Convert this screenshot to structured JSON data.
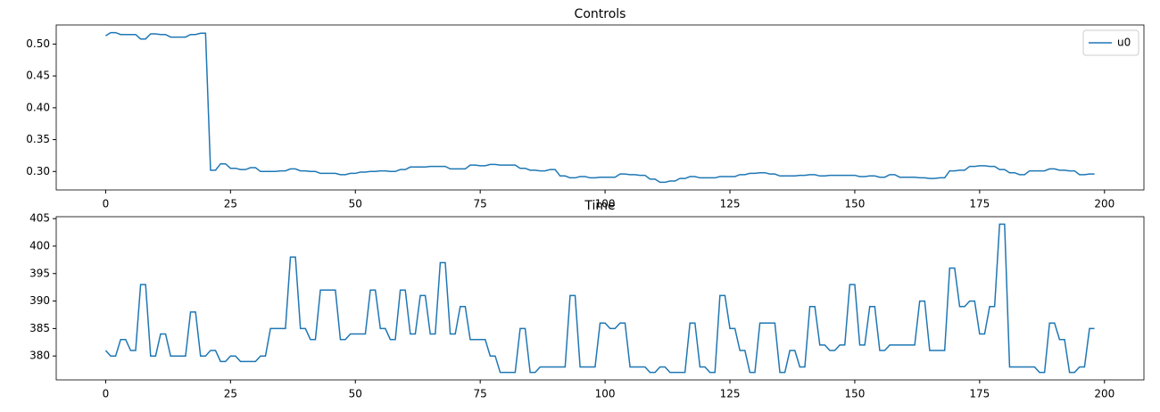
{
  "chart_data": [
    {
      "type": "line",
      "title": "Controls",
      "x": [
        0,
        1,
        2,
        3,
        4,
        5,
        6,
        7,
        8,
        9,
        10,
        11,
        12,
        13,
        14,
        15,
        16,
        17,
        18,
        19,
        20,
        21,
        22,
        23,
        24,
        25,
        26,
        27,
        28,
        29,
        30,
        31,
        32,
        33,
        34,
        35,
        36,
        37,
        38,
        39,
        40,
        41,
        42,
        43,
        44,
        45,
        46,
        47,
        48,
        49,
        50,
        51,
        52,
        53,
        54,
        55,
        56,
        57,
        58,
        59,
        60,
        61,
        62,
        63,
        64,
        65,
        66,
        67,
        68,
        69,
        70,
        71,
        72,
        73,
        74,
        75,
        76,
        77,
        78,
        79,
        80,
        81,
        82,
        83,
        84,
        85,
        86,
        87,
        88,
        89,
        90,
        91,
        92,
        93,
        94,
        95,
        96,
        97,
        98,
        99,
        100,
        101,
        102,
        103,
        104,
        105,
        106,
        107,
        108,
        109,
        110,
        111,
        112,
        113,
        114,
        115,
        116,
        117,
        118,
        119,
        120,
        121,
        122,
        123,
        124,
        125,
        126,
        127,
        128,
        129,
        130,
        131,
        132,
        133,
        134,
        135,
        136,
        137,
        138,
        139,
        140,
        141,
        142,
        143,
        144,
        145,
        146,
        147,
        148,
        149,
        150,
        151,
        152,
        153,
        154,
        155,
        156,
        157,
        158,
        159,
        160,
        161,
        162,
        163,
        164,
        165,
        166,
        167,
        168,
        169,
        170,
        171,
        172,
        173,
        174,
        175,
        176,
        177,
        178,
        179,
        180,
        181,
        182,
        183,
        184,
        185,
        186,
        187,
        188,
        189,
        190,
        191,
        192,
        193,
        194,
        195,
        196,
        197,
        198
      ],
      "series": [
        {
          "name": "u0",
          "color": "#1f77b4",
          "values": [
            0.513,
            0.518,
            0.518,
            0.515,
            0.515,
            0.515,
            0.515,
            0.508,
            0.508,
            0.516,
            0.516,
            0.515,
            0.515,
            0.511,
            0.511,
            0.511,
            0.511,
            0.515,
            0.515,
            0.517,
            0.517,
            0.302,
            0.302,
            0.312,
            0.312,
            0.305,
            0.305,
            0.303,
            0.303,
            0.306,
            0.306,
            0.3,
            0.3,
            0.3,
            0.3,
            0.301,
            0.301,
            0.304,
            0.304,
            0.301,
            0.301,
            0.3,
            0.3,
            0.297,
            0.297,
            0.297,
            0.297,
            0.295,
            0.295,
            0.297,
            0.297,
            0.299,
            0.299,
            0.3,
            0.3,
            0.301,
            0.301,
            0.3,
            0.3,
            0.303,
            0.303,
            0.307,
            0.307,
            0.307,
            0.307,
            0.308,
            0.308,
            0.308,
            0.308,
            0.304,
            0.304,
            0.304,
            0.304,
            0.31,
            0.31,
            0.309,
            0.309,
            0.311,
            0.311,
            0.31,
            0.31,
            0.31,
            0.31,
            0.305,
            0.305,
            0.302,
            0.302,
            0.301,
            0.301,
            0.303,
            0.303,
            0.293,
            0.293,
            0.29,
            0.29,
            0.292,
            0.292,
            0.29,
            0.29,
            0.291,
            0.291,
            0.291,
            0.291,
            0.296,
            0.296,
            0.295,
            0.295,
            0.294,
            0.294,
            0.288,
            0.288,
            0.283,
            0.283,
            0.285,
            0.285,
            0.289,
            0.289,
            0.292,
            0.292,
            0.29,
            0.29,
            0.29,
            0.29,
            0.292,
            0.292,
            0.292,
            0.292,
            0.295,
            0.295,
            0.297,
            0.297,
            0.298,
            0.298,
            0.296,
            0.296,
            0.293,
            0.293,
            0.293,
            0.293,
            0.294,
            0.294,
            0.295,
            0.295,
            0.293,
            0.293,
            0.294,
            0.294,
            0.294,
            0.294,
            0.294,
            0.294,
            0.292,
            0.292,
            0.293,
            0.293,
            0.291,
            0.291,
            0.295,
            0.295,
            0.291,
            0.291,
            0.291,
            0.291,
            0.29,
            0.29,
            0.289,
            0.289,
            0.29,
            0.29,
            0.301,
            0.301,
            0.302,
            0.302,
            0.308,
            0.308,
            0.309,
            0.309,
            0.308,
            0.308,
            0.303,
            0.303,
            0.298,
            0.298,
            0.295,
            0.295,
            0.301,
            0.301,
            0.301,
            0.301,
            0.304,
            0.304,
            0.302,
            0.302,
            0.301,
            0.301,
            0.295,
            0.295,
            0.296,
            0.296
          ]
        }
      ],
      "xlim": [
        -9.9,
        207.9
      ],
      "xticks": [
        0,
        25,
        50,
        75,
        100,
        125,
        150,
        175,
        200
      ],
      "ylim": [
        0.271,
        0.53
      ],
      "yticks": [
        {
          "value": 0.3,
          "label": "0.30"
        },
        {
          "value": 0.35,
          "label": "0.35"
        },
        {
          "value": 0.4,
          "label": "0.40"
        },
        {
          "value": 0.45,
          "label": "0.45"
        },
        {
          "value": 0.5,
          "label": "0.50"
        }
      ],
      "legend": "upper right"
    },
    {
      "type": "line",
      "title": "Time",
      "x": [
        0,
        1,
        2,
        3,
        4,
        5,
        6,
        7,
        8,
        9,
        10,
        11,
        12,
        13,
        14,
        15,
        16,
        17,
        18,
        19,
        20,
        21,
        22,
        23,
        24,
        25,
        26,
        27,
        28,
        29,
        30,
        31,
        32,
        33,
        34,
        35,
        36,
        37,
        38,
        39,
        40,
        41,
        42,
        43,
        44,
        45,
        46,
        47,
        48,
        49,
        50,
        51,
        52,
        53,
        54,
        55,
        56,
        57,
        58,
        59,
        60,
        61,
        62,
        63,
        64,
        65,
        66,
        67,
        68,
        69,
        70,
        71,
        72,
        73,
        74,
        75,
        76,
        77,
        78,
        79,
        80,
        81,
        82,
        83,
        84,
        85,
        86,
        87,
        88,
        89,
        90,
        91,
        92,
        93,
        94,
        95,
        96,
        97,
        98,
        99,
        100,
        101,
        102,
        103,
        104,
        105,
        106,
        107,
        108,
        109,
        110,
        111,
        112,
        113,
        114,
        115,
        116,
        117,
        118,
        119,
        120,
        121,
        122,
        123,
        124,
        125,
        126,
        127,
        128,
        129,
        130,
        131,
        132,
        133,
        134,
        135,
        136,
        137,
        138,
        139,
        140,
        141,
        142,
        143,
        144,
        145,
        146,
        147,
        148,
        149,
        150,
        151,
        152,
        153,
        154,
        155,
        156,
        157,
        158,
        159,
        160,
        161,
        162,
        163,
        164,
        165,
        166,
        167,
        168,
        169,
        170,
        171,
        172,
        173,
        174,
        175,
        176,
        177,
        178,
        179,
        180,
        181,
        182,
        183,
        184,
        185,
        186,
        187,
        188,
        189,
        190,
        191,
        192,
        193,
        194,
        195,
        196,
        197,
        198
      ],
      "series": [
        {
          "color": "#1f77b4",
          "values": [
            381,
            380,
            380,
            383,
            383,
            381,
            381,
            393,
            393,
            380,
            380,
            384,
            384,
            380,
            380,
            380,
            380,
            388,
            388,
            380,
            380,
            381,
            381,
            379,
            379,
            380,
            380,
            379,
            379,
            379,
            379,
            380,
            380,
            385,
            385,
            385,
            385,
            398,
            398,
            385,
            385,
            383,
            383,
            392,
            392,
            392,
            392,
            383,
            383,
            384,
            384,
            384,
            384,
            392,
            392,
            385,
            385,
            383,
            383,
            392,
            392,
            384,
            384,
            391,
            391,
            384,
            384,
            397,
            397,
            384,
            384,
            389,
            389,
            383,
            383,
            383,
            383,
            380,
            380,
            377,
            377,
            377,
            377,
            385,
            385,
            377,
            377,
            378,
            378,
            378,
            378,
            378,
            378,
            391,
            391,
            378,
            378,
            378,
            378,
            386,
            386,
            385,
            385,
            386,
            386,
            378,
            378,
            378,
            378,
            377,
            377,
            378,
            378,
            377,
            377,
            377,
            377,
            386,
            386,
            378,
            378,
            377,
            377,
            391,
            391,
            385,
            385,
            381,
            381,
            377,
            377,
            386,
            386,
            386,
            386,
            377,
            377,
            381,
            381,
            378,
            378,
            389,
            389,
            382,
            382,
            381,
            381,
            382,
            382,
            393,
            393,
            382,
            382,
            389,
            389,
            381,
            381,
            382,
            382,
            382,
            382,
            382,
            382,
            390,
            390,
            381,
            381,
            381,
            381,
            396,
            396,
            389,
            389,
            390,
            390,
            384,
            384,
            389,
            389,
            404,
            404,
            378,
            378,
            378,
            378,
            378,
            378,
            377,
            377,
            386,
            386,
            383,
            383,
            377,
            377,
            378,
            378,
            385,
            385
          ]
        }
      ],
      "xlim": [
        -9.9,
        207.9
      ],
      "xticks": [
        0,
        25,
        50,
        75,
        100,
        125,
        150,
        175,
        200
      ],
      "ylim": [
        375.65,
        405.35
      ],
      "yticks": [
        380,
        385,
        390,
        395,
        400,
        405
      ]
    }
  ]
}
